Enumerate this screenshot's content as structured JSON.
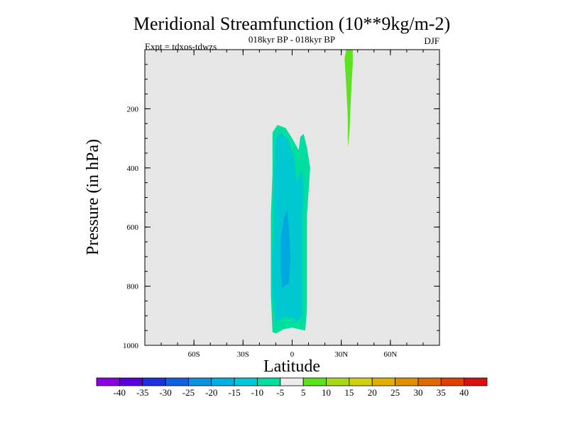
{
  "chart_data": {
    "type": "heatmap",
    "title": "Meridional Streamfunction (10**9kg/m-2)",
    "subtitle": "018kyr BP - 018kyr BP",
    "left_label": "Expt = tdxos-tdwzs",
    "right_label": "DJF",
    "xlabel": "Latitude",
    "ylabel": "Pressure (in hPa)",
    "xlim": [
      -90,
      90
    ],
    "ylim": [
      1000,
      0
    ],
    "x_ticks": [
      {
        "value": -60,
        "label": "60S"
      },
      {
        "value": -30,
        "label": "30S"
      },
      {
        "value": 0,
        "label": "0"
      },
      {
        "value": 30,
        "label": "30N"
      },
      {
        "value": 60,
        "label": "60N"
      }
    ],
    "y_ticks": [
      {
        "value": 200,
        "label": "200"
      },
      {
        "value": 400,
        "label": "400"
      },
      {
        "value": 600,
        "label": "600"
      },
      {
        "value": 800,
        "label": "800"
      },
      {
        "value": 1000,
        "label": "1000"
      }
    ],
    "background_color": "#e6e6e6",
    "contours": [
      {
        "level": "-15 to -10",
        "color": "#00dfa0",
        "points": [
          [
            -12,
            955
          ],
          [
            -10,
            960
          ],
          [
            -5,
            945
          ],
          [
            0,
            940
          ],
          [
            4,
            945
          ],
          [
            8,
            950
          ],
          [
            9,
            880
          ],
          [
            9,
            760
          ],
          [
            9,
            640
          ],
          [
            9,
            560
          ],
          [
            10,
            480
          ],
          [
            11,
            400
          ],
          [
            9,
            330
          ],
          [
            7,
            285
          ],
          [
            5,
            295
          ],
          [
            4,
            340
          ],
          [
            0,
            300
          ],
          [
            -4,
            265
          ],
          [
            -9,
            255
          ],
          [
            -12,
            280
          ],
          [
            -12,
            420
          ],
          [
            -13,
            560
          ],
          [
            -13,
            700
          ],
          [
            -13,
            830
          ]
        ]
      },
      {
        "level": "-20 to -15",
        "color": "#00c8d0",
        "points": [
          [
            -10,
            920
          ],
          [
            -5,
            905
          ],
          [
            0,
            905
          ],
          [
            3,
            920
          ],
          [
            6,
            900
          ],
          [
            6,
            750
          ],
          [
            6,
            600
          ],
          [
            7,
            470
          ],
          [
            6,
            400
          ],
          [
            3,
            450
          ],
          [
            1,
            360
          ],
          [
            -3,
            300
          ],
          [
            -7,
            280
          ],
          [
            -10,
            300
          ],
          [
            -11,
            420
          ],
          [
            -11,
            560
          ],
          [
            -12,
            700
          ],
          [
            -12,
            820
          ]
        ]
      },
      {
        "level": "-25 to -20",
        "color": "#00a8dd",
        "points": [
          [
            -6,
            805
          ],
          [
            -2,
            790
          ],
          [
            -1,
            700
          ],
          [
            -2,
            600
          ],
          [
            -3,
            540
          ],
          [
            -5,
            570
          ],
          [
            -7,
            640
          ],
          [
            -7,
            740
          ]
        ]
      },
      {
        "level": "5 to 10",
        "color": "#5ce21e",
        "points": [
          [
            33,
            0
          ],
          [
            37,
            0
          ],
          [
            37,
            50
          ],
          [
            36,
            150
          ],
          [
            35,
            280
          ],
          [
            34,
            330
          ],
          [
            34,
            230
          ],
          [
            33,
            120
          ],
          [
            32,
            30
          ]
        ]
      }
    ],
    "colorbar": {
      "labels": [
        "-40",
        "-35",
        "-30",
        "-25",
        "-20",
        "-15",
        "-10",
        "-5",
        "5",
        "10",
        "15",
        "20",
        "25",
        "30",
        "35",
        "40"
      ],
      "colors": [
        "#8a00e0",
        "#5a00e0",
        "#2030e0",
        "#1060e0",
        "#1090e0",
        "#00b0e0",
        "#00c8d8",
        "#00dfa0",
        "#ececec",
        "#5ce21e",
        "#a8d818",
        "#d0d010",
        "#e0b000",
        "#e09000",
        "#e06800",
        "#e04000",
        "#d81010"
      ]
    }
  }
}
